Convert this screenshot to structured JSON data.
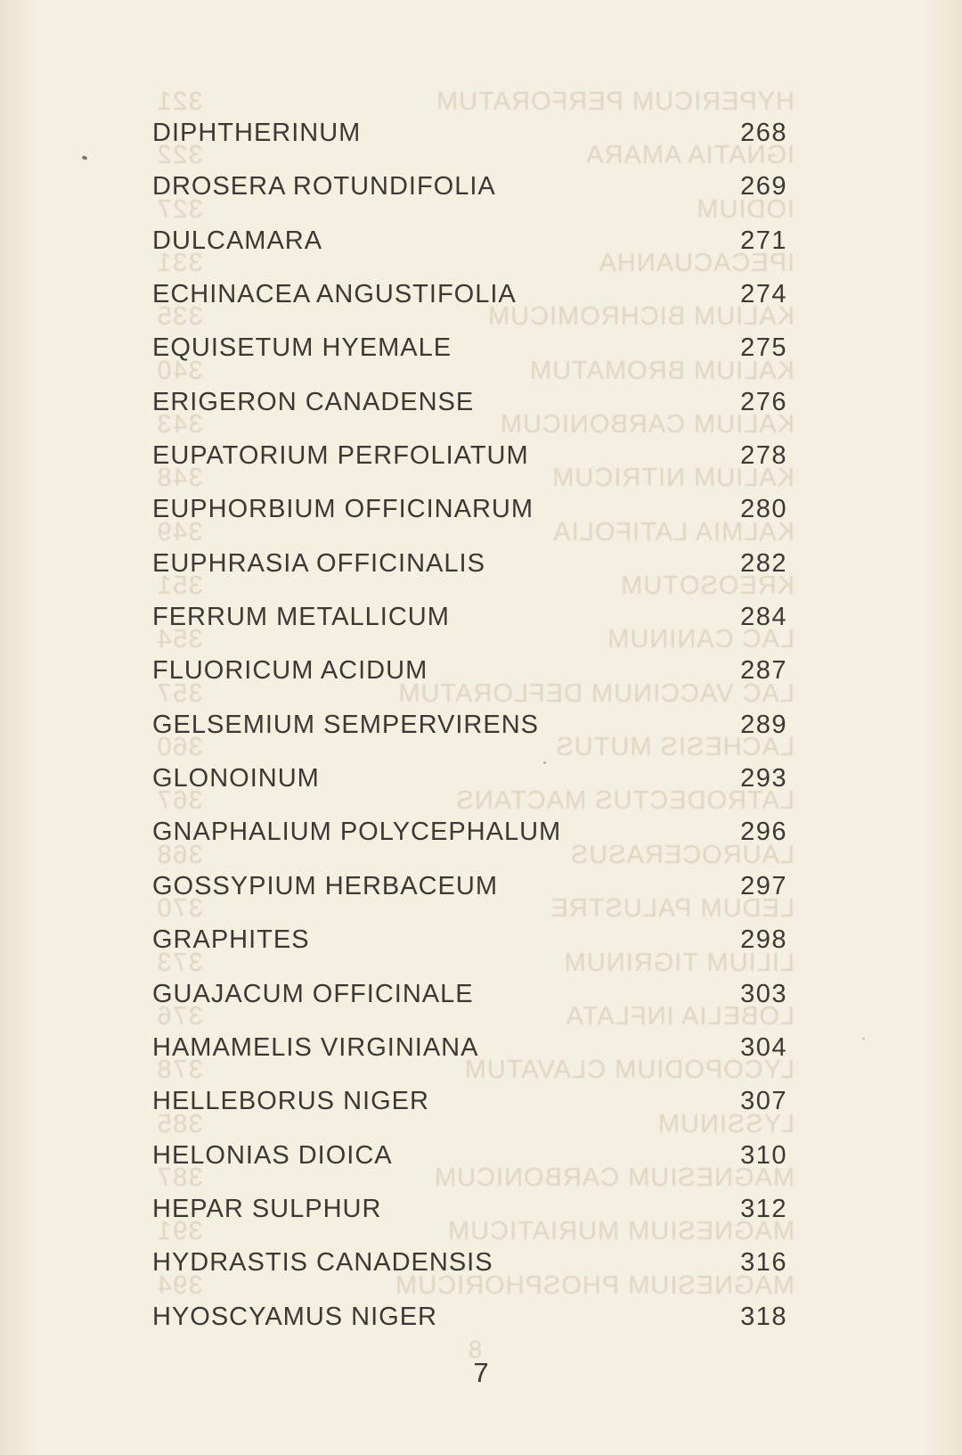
{
  "colors": {
    "paper": "#f3efe1",
    "ink": "#3c3933",
    "bleed": "#d8d3bf"
  },
  "toc": {
    "page_number": "7",
    "entries": [
      {
        "title": "DIPHTHERINUM",
        "page": "268"
      },
      {
        "title": "DROSERA ROTUNDIFOLIA",
        "page": "269"
      },
      {
        "title": "DULCAMARA",
        "page": "271"
      },
      {
        "title": "ECHINACEA ANGUSTIFOLIA",
        "page": "274"
      },
      {
        "title": "EQUISETUM HYEMALE",
        "page": "275"
      },
      {
        "title": "ERIGERON CANADENSE",
        "page": "276"
      },
      {
        "title": "EUPATORIUM PERFOLIATUM",
        "page": "278"
      },
      {
        "title": "EUPHORBIUM OFFICINARUM",
        "page": "280"
      },
      {
        "title": "EUPHRASIA OFFICINALIS",
        "page": "282"
      },
      {
        "title": "FERRUM METALLICUM",
        "page": "284"
      },
      {
        "title": "FLUORICUM ACIDUM",
        "page": "287"
      },
      {
        "title": "GELSEMIUM SEMPERVIRENS",
        "page": "289"
      },
      {
        "title": "GLONOINUM",
        "page": "293"
      },
      {
        "title": "GNAPHALIUM POLYCEPHALUM",
        "page": "296"
      },
      {
        "title": "GOSSYPIUM HERBACEUM",
        "page": "297"
      },
      {
        "title": "GRAPHITES",
        "page": "298"
      },
      {
        "title": "GUAJACUM OFFICINALE",
        "page": "303"
      },
      {
        "title": "HAMAMELIS VIRGINIANA",
        "page": "304"
      },
      {
        "title": "HELLEBORUS NIGER",
        "page": "307"
      },
      {
        "title": "HELONIAS DIOICA",
        "page": "310"
      },
      {
        "title": "HEPAR SULPHUR",
        "page": "312"
      },
      {
        "title": "HYDRASTIS CANADENSIS",
        "page": "316"
      },
      {
        "title": "HYOSCYAMUS NIGER",
        "page": "318"
      }
    ]
  },
  "bleedthrough": {
    "page_number": "8",
    "entries": [
      {
        "title": "HYPERICUM PERFORATUM",
        "page": "321"
      },
      {
        "title": "IGNATIA AMARA",
        "page": "322"
      },
      {
        "title": "IODIUM",
        "page": "327"
      },
      {
        "title": "IPECACUANHA",
        "page": "331"
      },
      {
        "title": "KALIUM BICHROMICUM",
        "page": "335"
      },
      {
        "title": "KALIUM BROMATUM",
        "page": "340"
      },
      {
        "title": "KALIUM CARBONICUM",
        "page": "343"
      },
      {
        "title": "KALIUM NITRICUM",
        "page": "348"
      },
      {
        "title": "KALMIA LATIFOLIA",
        "page": "349"
      },
      {
        "title": "KREOSOTUM",
        "page": "351"
      },
      {
        "title": "LAC CANINUM",
        "page": "354"
      },
      {
        "title": "LAC VACCINUM DEFLORATUM",
        "page": "357"
      },
      {
        "title": "LACHESIS MUTUS",
        "page": "360"
      },
      {
        "title": "LATRODECTUS MACTANS",
        "page": "367"
      },
      {
        "title": "LAUROCERASUS",
        "page": "368"
      },
      {
        "title": "LEDUM PALUSTRE",
        "page": "370"
      },
      {
        "title": "LILIUM TIGRINUM",
        "page": "373"
      },
      {
        "title": "LOBELIA INFLATA",
        "page": "376"
      },
      {
        "title": "LYCOPODIUM CLAVATUM",
        "page": "378"
      },
      {
        "title": "LYSSINUM",
        "page": "385"
      },
      {
        "title": "MAGNESIUM CARBONICUM",
        "page": "387"
      },
      {
        "title": "MAGNESIUM MURIATICUM",
        "page": "391"
      },
      {
        "title": "MAGNESIUM PHOSPHORICUM",
        "page": "394"
      }
    ]
  }
}
